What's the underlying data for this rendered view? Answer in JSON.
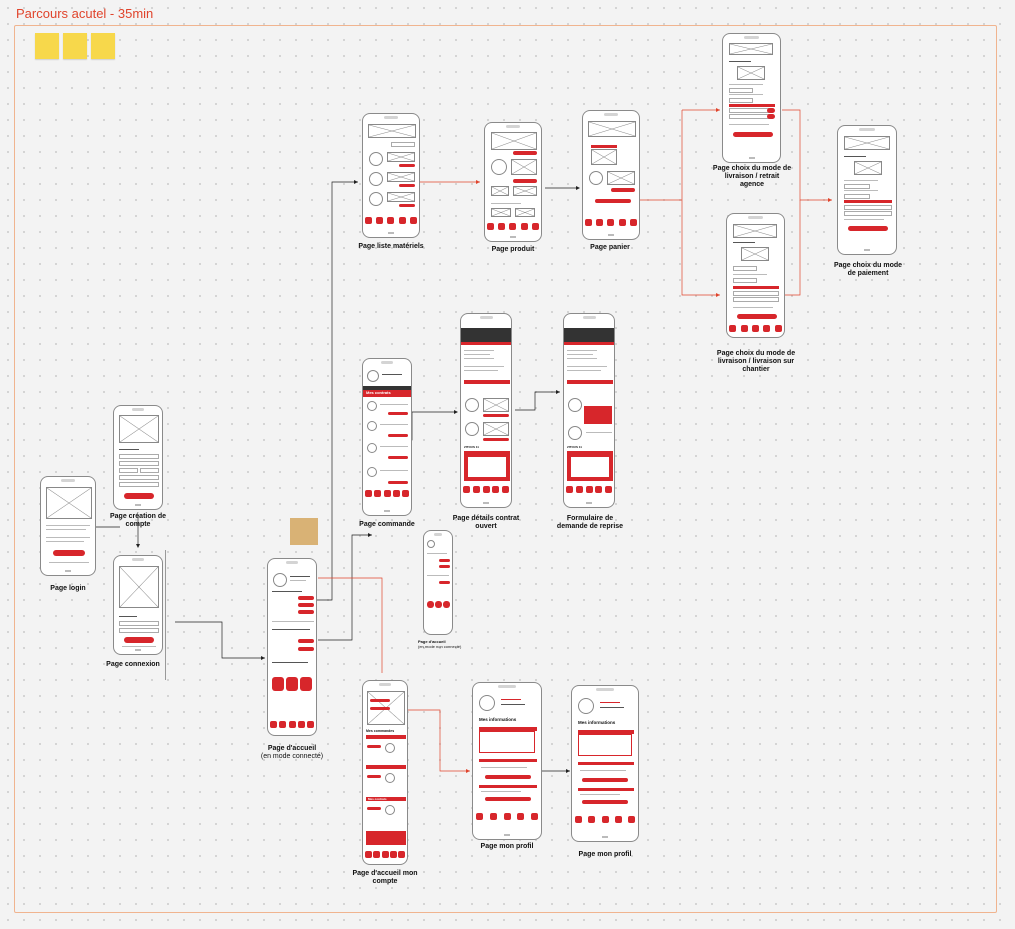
{
  "board": {
    "title": "Parcours acutel - 35min"
  },
  "screens": {
    "login": {
      "caption": "Page login"
    },
    "creation_compte": {
      "caption": "Page création de compte"
    },
    "connexion": {
      "caption": "Page connexion"
    },
    "accueil_connecte": {
      "caption": "Page d'accueil",
      "subcaption": "(en mode connecté)"
    },
    "accueil_non_connecte": {
      "caption": "Page d'accueil",
      "subcaption": "(en mode non connecté)"
    },
    "liste_materiels": {
      "caption": "Page liste matériels"
    },
    "produit": {
      "caption": "Page produit"
    },
    "panier": {
      "caption": "Page panier"
    },
    "livraison_agence": {
      "caption": "Page choix du mode de livraison / retrait agence"
    },
    "livraison_chantier": {
      "caption": "Page choix du mode de livraison / livraison sur chantier"
    },
    "paiement": {
      "caption": "Page choix du mode de paiement"
    },
    "commande": {
      "caption": "Page commande"
    },
    "contrat_ouvert": {
      "caption": "Page détails contrat ouvert"
    },
    "reprise": {
      "caption": "Formulaire de demande de reprise"
    },
    "accueil_mon_compte": {
      "caption": "Page d'accueil mon compte"
    },
    "mon_profil_1": {
      "caption": "Page mon profil"
    },
    "mon_profil_2": {
      "caption": "Page mon profil"
    }
  },
  "screen_text": {
    "commande_title": "Mes contrats",
    "profil_title": "Mes informations",
    "compte_title": "Mes commandes",
    "compte_contrats": "Mes contrats",
    "reprise_total": "ZITOUS 11",
    "contrat_total": "ZITOUS 11"
  },
  "colors": {
    "accent": "#d7262b",
    "canvas": "#f3f3f3",
    "frame": "#f0b48f",
    "title": "#e0442c"
  }
}
